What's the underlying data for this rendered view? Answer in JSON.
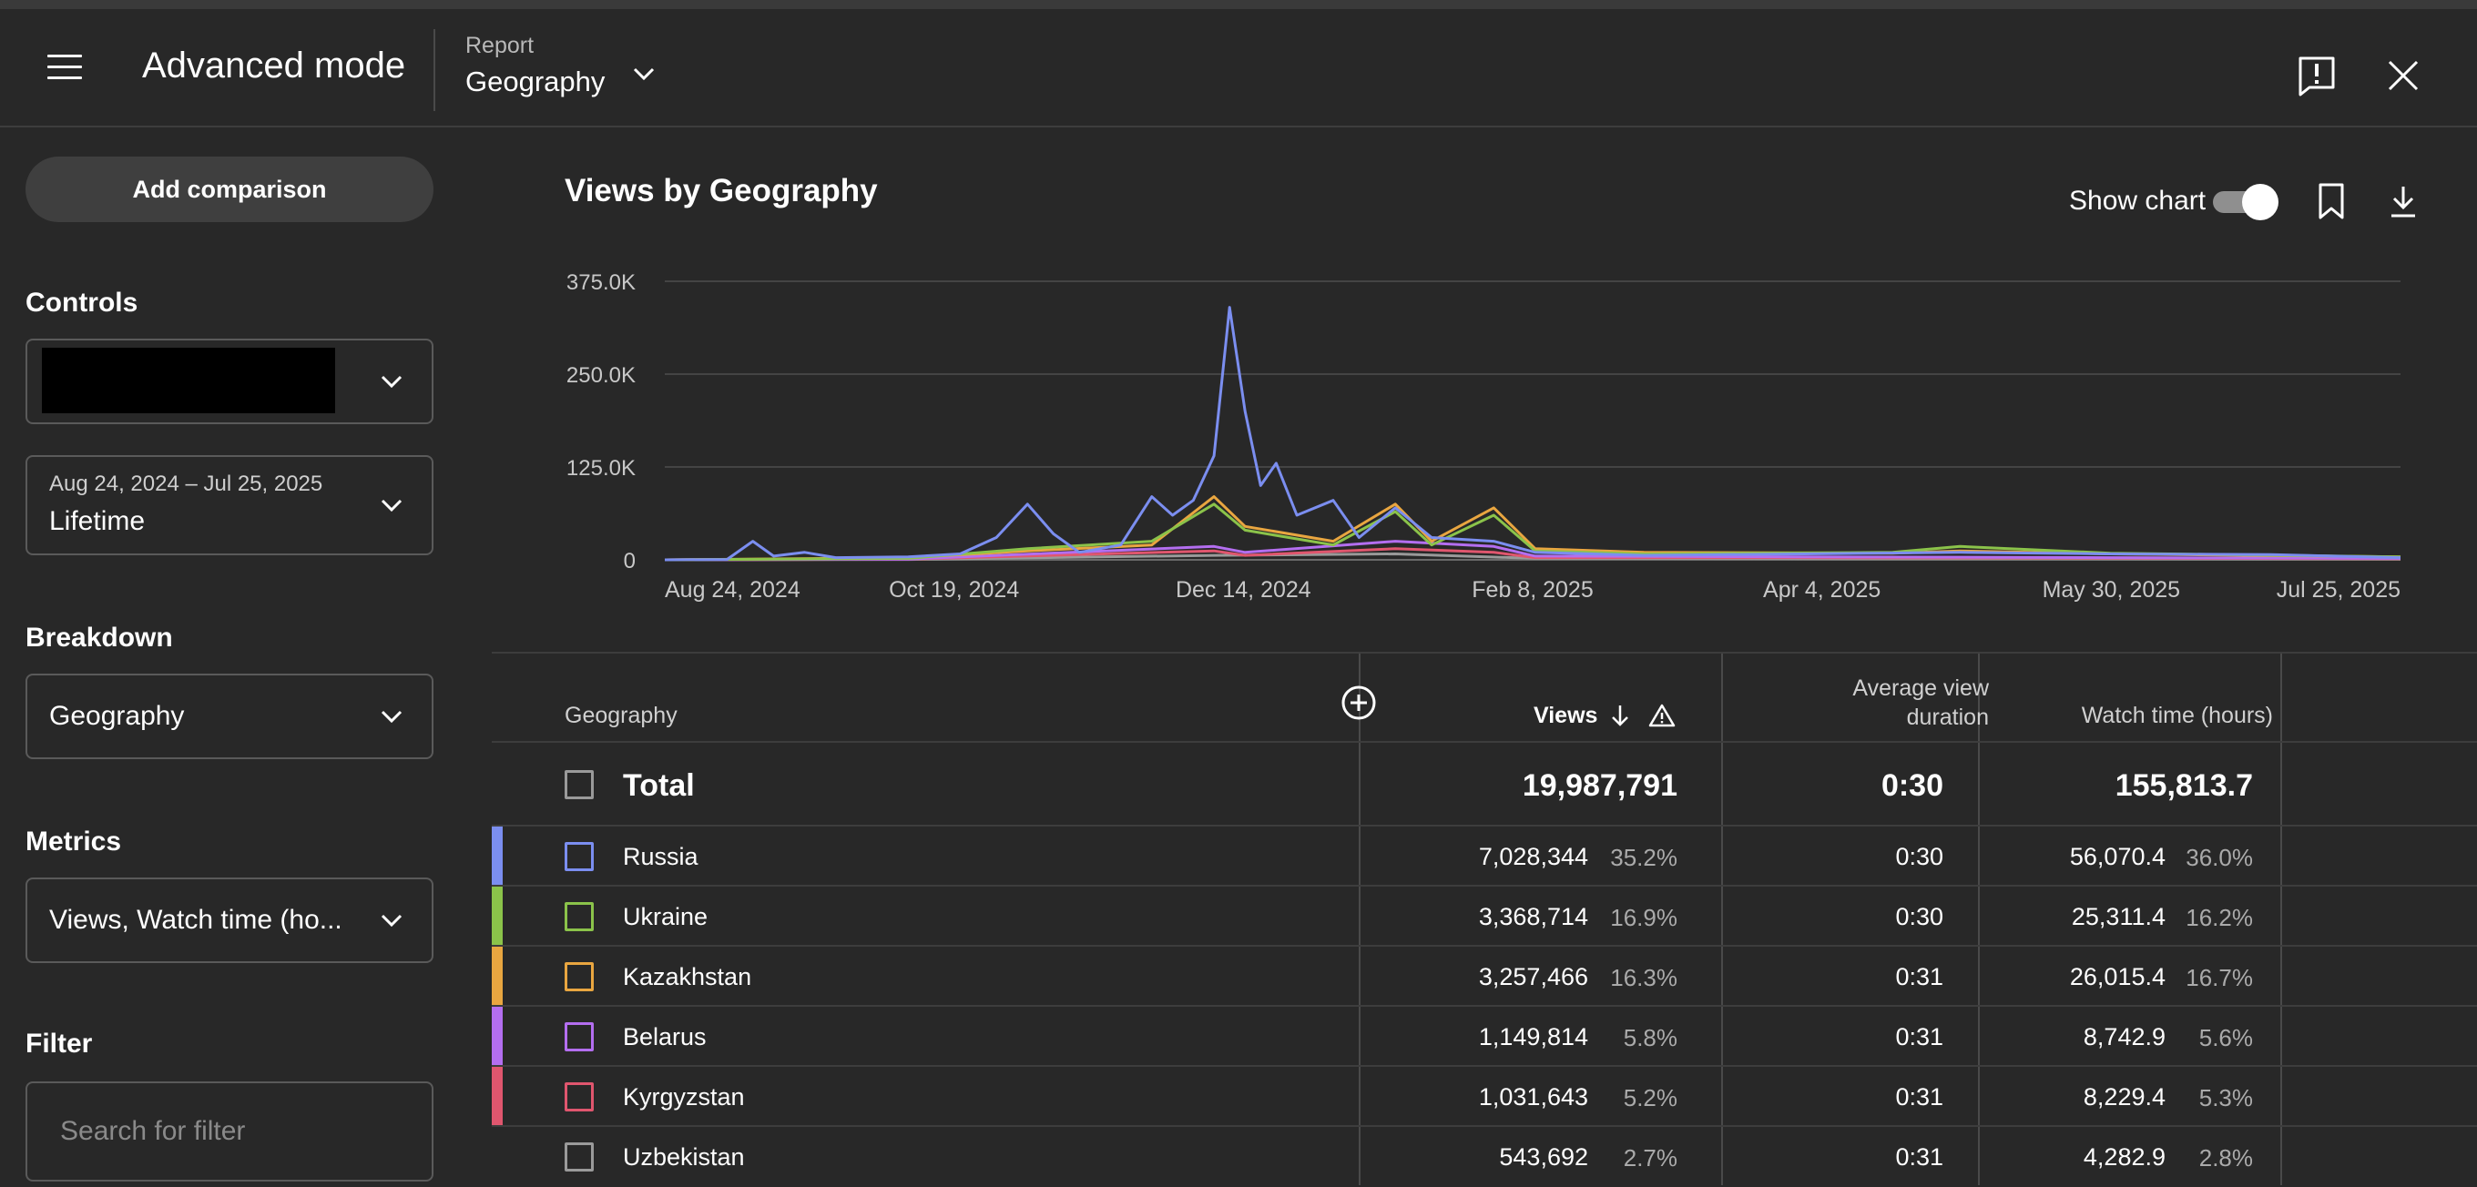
{
  "header": {
    "app_title": "Advanced mode",
    "report_label": "Report",
    "report_value": "Geography"
  },
  "sidebar": {
    "add_comparison": "Add comparison",
    "controls_label": "Controls",
    "date_range": "Aug 24, 2024 – Jul 25, 2025",
    "date_preset": "Lifetime",
    "breakdown_label": "Breakdown",
    "breakdown_value": "Geography",
    "metrics_label": "Metrics",
    "metrics_value": "Views, Watch time (ho...",
    "filter_label": "Filter",
    "filter_placeholder": "Search for filter"
  },
  "chart": {
    "title": "Views by Geography",
    "show_chart_label": "Show chart",
    "show_chart_on": true
  },
  "chart_data": {
    "type": "line",
    "title": "Views by Geography",
    "y_ticks": [
      "375.0K",
      "250.0K",
      "125.0K",
      "0"
    ],
    "x_ticks": [
      "Aug 24, 2024",
      "Oct 19, 2024",
      "Dec 14, 2024",
      "Feb 8, 2025",
      "Apr 4, 2025",
      "May 30, 2025",
      "Jul 25, 2025"
    ],
    "ylim": [
      0,
      375000
    ],
    "x_range": [
      "2024-08-24",
      "2025-07-25"
    ],
    "grid": true,
    "series": [
      {
        "name": "Russia",
        "color": "#7b8ef0",
        "points": [
          [
            "2024-08-24",
            0
          ],
          [
            "2024-09-05",
            500
          ],
          [
            "2024-09-10",
            25000
          ],
          [
            "2024-09-14",
            5000
          ],
          [
            "2024-09-20",
            10000
          ],
          [
            "2024-09-26",
            3000
          ],
          [
            "2024-10-10",
            4000
          ],
          [
            "2024-10-20",
            8000
          ],
          [
            "2024-10-27",
            30000
          ],
          [
            "2024-11-02",
            75000
          ],
          [
            "2024-11-07",
            35000
          ],
          [
            "2024-11-12",
            10000
          ],
          [
            "2024-11-20",
            20000
          ],
          [
            "2024-11-26",
            85000
          ],
          [
            "2024-11-30",
            60000
          ],
          [
            "2024-12-04",
            80000
          ],
          [
            "2024-12-08",
            140000
          ],
          [
            "2024-12-11",
            340000
          ],
          [
            "2024-12-14",
            200000
          ],
          [
            "2024-12-17",
            100000
          ],
          [
            "2024-12-20",
            130000
          ],
          [
            "2024-12-24",
            60000
          ],
          [
            "2024-12-31",
            80000
          ],
          [
            "2025-01-05",
            30000
          ],
          [
            "2025-01-12",
            70000
          ],
          [
            "2025-01-19",
            30000
          ],
          [
            "2025-01-31",
            25000
          ],
          [
            "2025-02-08",
            10000
          ],
          [
            "2025-03-01",
            6000
          ],
          [
            "2025-04-01",
            8000
          ],
          [
            "2025-05-01",
            10000
          ],
          [
            "2025-05-30",
            8000
          ],
          [
            "2025-06-30",
            7000
          ],
          [
            "2025-07-25",
            3000
          ]
        ]
      },
      {
        "name": "Ukraine",
        "color": "#8bc34a",
        "points": [
          [
            "2024-08-24",
            0
          ],
          [
            "2024-10-10",
            2000
          ],
          [
            "2024-11-02",
            15000
          ],
          [
            "2024-11-26",
            25000
          ],
          [
            "2024-12-08",
            75000
          ],
          [
            "2024-12-14",
            40000
          ],
          [
            "2024-12-31",
            20000
          ],
          [
            "2025-01-12",
            65000
          ],
          [
            "2025-01-19",
            20000
          ],
          [
            "2025-01-31",
            60000
          ],
          [
            "2025-02-08",
            12000
          ],
          [
            "2025-03-01",
            8000
          ],
          [
            "2025-04-18",
            10000
          ],
          [
            "2025-05-01",
            18000
          ],
          [
            "2025-05-30",
            9000
          ],
          [
            "2025-07-25",
            4000
          ]
        ]
      },
      {
        "name": "Kazakhstan",
        "color": "#e9a640",
        "points": [
          [
            "2024-08-24",
            0
          ],
          [
            "2024-10-10",
            3000
          ],
          [
            "2024-11-02",
            12000
          ],
          [
            "2024-11-26",
            20000
          ],
          [
            "2024-12-08",
            85000
          ],
          [
            "2024-12-14",
            45000
          ],
          [
            "2024-12-31",
            25000
          ],
          [
            "2025-01-12",
            75000
          ],
          [
            "2025-01-19",
            25000
          ],
          [
            "2025-01-31",
            70000
          ],
          [
            "2025-02-08",
            15000
          ],
          [
            "2025-03-01",
            10000
          ],
          [
            "2025-04-18",
            9000
          ],
          [
            "2025-05-01",
            12000
          ],
          [
            "2025-05-30",
            8000
          ],
          [
            "2025-07-25",
            4000
          ]
        ]
      },
      {
        "name": "Belarus",
        "color": "#b46ef0",
        "points": [
          [
            "2024-08-24",
            0
          ],
          [
            "2024-10-10",
            1000
          ],
          [
            "2024-12-08",
            18000
          ],
          [
            "2024-12-14",
            10000
          ],
          [
            "2025-01-12",
            25000
          ],
          [
            "2025-01-31",
            18000
          ],
          [
            "2025-02-08",
            5000
          ],
          [
            "2025-04-01",
            4000
          ],
          [
            "2025-07-25",
            2000
          ]
        ]
      },
      {
        "name": "Kyrgyzstan",
        "color": "#e0566e",
        "points": [
          [
            "2024-08-24",
            0
          ],
          [
            "2024-10-10",
            800
          ],
          [
            "2024-12-08",
            12000
          ],
          [
            "2024-12-14",
            6000
          ],
          [
            "2025-01-12",
            15000
          ],
          [
            "2025-01-31",
            10000
          ],
          [
            "2025-02-08",
            3000
          ],
          [
            "2025-04-01",
            3000
          ],
          [
            "2025-07-25",
            1500
          ]
        ]
      },
      {
        "name": "Uzbekistan",
        "color": "#9a9a9a",
        "points": [
          [
            "2024-08-24",
            0
          ],
          [
            "2024-10-10",
            500
          ],
          [
            "2024-12-08",
            6000
          ],
          [
            "2025-01-12",
            8000
          ],
          [
            "2025-02-08",
            2000
          ],
          [
            "2025-07-25",
            1000
          ]
        ]
      }
    ]
  },
  "table": {
    "headers": {
      "geography": "Geography",
      "views": "Views",
      "avd_line1": "Average view",
      "avd_line2": "duration",
      "watch_time": "Watch time (hours)"
    },
    "total": {
      "label": "Total",
      "views": "19,987,791",
      "avd": "0:30",
      "watch_time": "155,813.7"
    },
    "rows": [
      {
        "name": "Russia",
        "color": "#7b8ef0",
        "views": "7,028,344",
        "views_pct": "35.2%",
        "avd": "0:30",
        "watch_time": "56,070.4",
        "watch_pct": "36.0%"
      },
      {
        "name": "Ukraine",
        "color": "#8bc34a",
        "views": "3,368,714",
        "views_pct": "16.9%",
        "avd": "0:30",
        "watch_time": "25,311.4",
        "watch_pct": "16.2%"
      },
      {
        "name": "Kazakhstan",
        "color": "#e9a640",
        "views": "3,257,466",
        "views_pct": "16.3%",
        "avd": "0:31",
        "watch_time": "26,015.4",
        "watch_pct": "16.7%"
      },
      {
        "name": "Belarus",
        "color": "#b46ef0",
        "views": "1,149,814",
        "views_pct": "5.8%",
        "avd": "0:31",
        "watch_time": "8,742.9",
        "watch_pct": "5.6%"
      },
      {
        "name": "Kyrgyzstan",
        "color": "#e0566e",
        "views": "1,031,643",
        "views_pct": "5.2%",
        "avd": "0:31",
        "watch_time": "8,229.4",
        "watch_pct": "5.3%"
      },
      {
        "name": "Uzbekistan",
        "color": "#9a9a9a",
        "views": "543,692",
        "views_pct": "2.7%",
        "avd": "0:31",
        "watch_time": "4,282.9",
        "watch_pct": "2.8%"
      }
    ]
  }
}
